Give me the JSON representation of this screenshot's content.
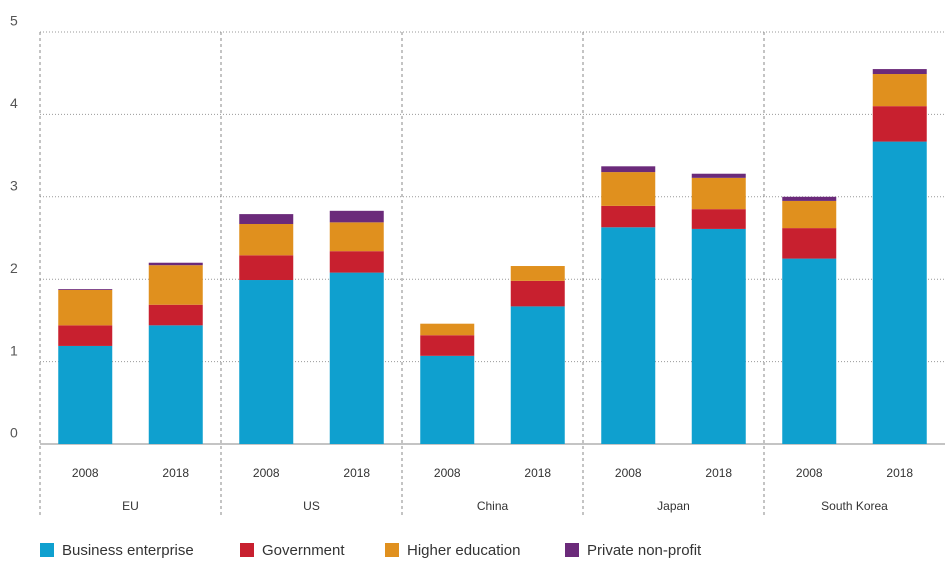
{
  "chart_data": {
    "type": "stacked-bar",
    "categories": [
      "2008",
      "2018",
      "2008",
      "2018",
      "2008",
      "2018",
      "2008",
      "2018",
      "2008",
      "2018"
    ],
    "groups": [
      "EU",
      "US",
      "China",
      "Japan",
      "South Korea"
    ],
    "series": [
      {
        "name": "Business enterprise",
        "color": "#0fa0cf",
        "values": [
          1.19,
          1.44,
          1.99,
          2.08,
          1.07,
          1.67,
          2.63,
          2.61,
          2.25,
          3.67
        ]
      },
      {
        "name": "Government",
        "color": "#c8202f",
        "values": [
          0.25,
          0.25,
          0.3,
          0.26,
          0.25,
          0.31,
          0.26,
          0.24,
          0.37,
          0.43
        ]
      },
      {
        "name": "Higher education",
        "color": "#e0901e",
        "values": [
          0.43,
          0.48,
          0.38,
          0.35,
          0.14,
          0.18,
          0.41,
          0.38,
          0.33,
          0.39
        ]
      },
      {
        "name": "Private non-profit",
        "color": "#6b2a7a",
        "values": [
          0.01,
          0.03,
          0.12,
          0.14,
          0,
          0,
          0.07,
          0.05,
          0.05,
          0.06
        ]
      }
    ],
    "ylim": [
      0,
      5
    ],
    "yticks": [
      0,
      1,
      2,
      3,
      4,
      5
    ],
    "grid": true,
    "legend": "bottom"
  }
}
